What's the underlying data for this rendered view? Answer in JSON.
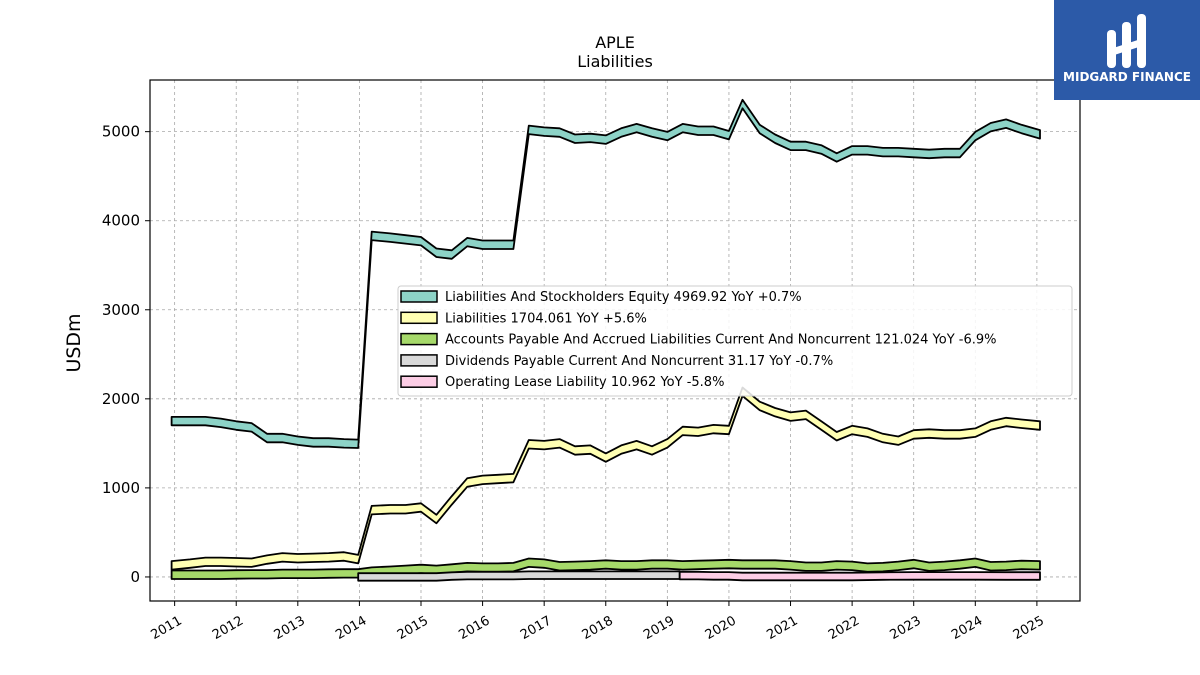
{
  "header": {
    "ticker": "APLE",
    "subtitle": "Liabilities"
  },
  "logo": {
    "text": "MIDGARD FINANCE",
    "background": "#2c5aa8"
  },
  "chart_data": {
    "type": "area",
    "ylabel": "USDm",
    "xlim": [
      2010.6,
      2025.7
    ],
    "ylim": [
      -270,
      5580
    ],
    "yticks": [
      0,
      1000,
      2000,
      3000,
      4000,
      5000
    ],
    "xticks": [
      "2011",
      "2012",
      "2013",
      "2014",
      "2015",
      "2016",
      "2017",
      "2018",
      "2019",
      "2020",
      "2021",
      "2022",
      "2023",
      "2024",
      "2025"
    ],
    "grid": true,
    "legend_position": "center-right",
    "series": [
      {
        "name": "Liabilities And Stockholders Equity",
        "legend": "Liabilities And Stockholders Equity  4969.92 YoY +0.7%",
        "color": "#8dd3c7",
        "band": 95,
        "points": [
          [
            2010.95,
            1750
          ],
          [
            2011.25,
            1750
          ],
          [
            2011.5,
            1750
          ],
          [
            2011.75,
            1730
          ],
          [
            2012.0,
            1700
          ],
          [
            2012.25,
            1680
          ],
          [
            2012.5,
            1560
          ],
          [
            2012.75,
            1560
          ],
          [
            2013.0,
            1530
          ],
          [
            2013.25,
            1510
          ],
          [
            2013.5,
            1510
          ],
          [
            2013.75,
            1500
          ],
          [
            2013.98,
            1495
          ],
          [
            2014.2,
            3830
          ],
          [
            2014.5,
            3810
          ],
          [
            2014.75,
            3790
          ],
          [
            2015.0,
            3770
          ],
          [
            2015.25,
            3640
          ],
          [
            2015.5,
            3620
          ],
          [
            2015.75,
            3760
          ],
          [
            2016.0,
            3730
          ],
          [
            2016.25,
            3730
          ],
          [
            2016.5,
            3730
          ],
          [
            2016.75,
            5020
          ],
          [
            2017.0,
            5000
          ],
          [
            2017.25,
            4990
          ],
          [
            2017.5,
            4920
          ],
          [
            2017.75,
            4930
          ],
          [
            2018.0,
            4910
          ],
          [
            2018.25,
            4990
          ],
          [
            2018.5,
            5040
          ],
          [
            2018.75,
            4990
          ],
          [
            2019.0,
            4950
          ],
          [
            2019.25,
            5040
          ],
          [
            2019.5,
            5010
          ],
          [
            2019.75,
            5010
          ],
          [
            2020.0,
            4960
          ],
          [
            2020.22,
            5310
          ],
          [
            2020.5,
            5030
          ],
          [
            2020.75,
            4920
          ],
          [
            2021.0,
            4840
          ],
          [
            2021.25,
            4840
          ],
          [
            2021.5,
            4800
          ],
          [
            2021.75,
            4710
          ],
          [
            2022.0,
            4790
          ],
          [
            2022.25,
            4790
          ],
          [
            2022.5,
            4770
          ],
          [
            2022.75,
            4770
          ],
          [
            2023.0,
            4760
          ],
          [
            2023.25,
            4750
          ],
          [
            2023.5,
            4760
          ],
          [
            2023.75,
            4760
          ],
          [
            2024.0,
            4950
          ],
          [
            2024.25,
            5050
          ],
          [
            2024.5,
            5090
          ],
          [
            2024.75,
            5030
          ],
          [
            2025.05,
            4970
          ]
        ]
      },
      {
        "name": "Liabilities",
        "legend": "Liabilities  1704.061 YoY +5.6%",
        "color": "#ffffb3",
        "band": 95,
        "points": [
          [
            2010.95,
            130
          ],
          [
            2011.25,
            150
          ],
          [
            2011.5,
            170
          ],
          [
            2011.75,
            170
          ],
          [
            2012.0,
            165
          ],
          [
            2012.25,
            160
          ],
          [
            2012.5,
            195
          ],
          [
            2012.75,
            220
          ],
          [
            2013.0,
            210
          ],
          [
            2013.25,
            215
          ],
          [
            2013.5,
            220
          ],
          [
            2013.75,
            230
          ],
          [
            2013.98,
            200
          ],
          [
            2014.2,
            750
          ],
          [
            2014.5,
            760
          ],
          [
            2014.75,
            760
          ],
          [
            2015.0,
            780
          ],
          [
            2015.25,
            650
          ],
          [
            2015.5,
            860
          ],
          [
            2015.75,
            1060
          ],
          [
            2016.0,
            1090
          ],
          [
            2016.25,
            1100
          ],
          [
            2016.5,
            1110
          ],
          [
            2016.75,
            1490
          ],
          [
            2017.0,
            1480
          ],
          [
            2017.25,
            1500
          ],
          [
            2017.5,
            1420
          ],
          [
            2017.75,
            1430
          ],
          [
            2018.0,
            1340
          ],
          [
            2018.25,
            1430
          ],
          [
            2018.5,
            1480
          ],
          [
            2018.75,
            1420
          ],
          [
            2019.0,
            1500
          ],
          [
            2019.25,
            1640
          ],
          [
            2019.5,
            1630
          ],
          [
            2019.75,
            1660
          ],
          [
            2020.0,
            1650
          ],
          [
            2020.22,
            2080
          ],
          [
            2020.5,
            1920
          ],
          [
            2020.75,
            1850
          ],
          [
            2021.0,
            1800
          ],
          [
            2021.25,
            1820
          ],
          [
            2021.5,
            1700
          ],
          [
            2021.75,
            1580
          ],
          [
            2022.0,
            1650
          ],
          [
            2022.25,
            1620
          ],
          [
            2022.5,
            1560
          ],
          [
            2022.75,
            1530
          ],
          [
            2023.0,
            1600
          ],
          [
            2023.25,
            1610
          ],
          [
            2023.5,
            1600
          ],
          [
            2023.75,
            1600
          ],
          [
            2024.0,
            1620
          ],
          [
            2024.25,
            1700
          ],
          [
            2024.5,
            1740
          ],
          [
            2024.75,
            1720
          ],
          [
            2025.05,
            1700
          ]
        ]
      },
      {
        "name": "Accounts Payable And Accrued Liabilities Current And Noncurrent",
        "legend": "Accounts Payable And Accrued Liabilities Current And Noncurrent  121.024 YoY -6.9%",
        "color": "#a6d96a",
        "band": 95,
        "points": [
          [
            2010.95,
            25
          ],
          [
            2011.25,
            25
          ],
          [
            2011.5,
            25
          ],
          [
            2011.75,
            25
          ],
          [
            2012.0,
            28
          ],
          [
            2012.25,
            30
          ],
          [
            2012.5,
            30
          ],
          [
            2012.75,
            35
          ],
          [
            2013.0,
            35
          ],
          [
            2013.25,
            35
          ],
          [
            2013.5,
            38
          ],
          [
            2013.75,
            40
          ],
          [
            2013.98,
            40
          ],
          [
            2014.2,
            60
          ],
          [
            2014.5,
            70
          ],
          [
            2014.75,
            80
          ],
          [
            2015.0,
            90
          ],
          [
            2015.25,
            80
          ],
          [
            2015.5,
            95
          ],
          [
            2015.75,
            110
          ],
          [
            2016.0,
            105
          ],
          [
            2016.25,
            105
          ],
          [
            2016.5,
            110
          ],
          [
            2016.75,
            160
          ],
          [
            2017.0,
            150
          ],
          [
            2017.25,
            120
          ],
          [
            2017.5,
            125
          ],
          [
            2017.75,
            130
          ],
          [
            2018.0,
            140
          ],
          [
            2018.25,
            130
          ],
          [
            2018.5,
            130
          ],
          [
            2018.75,
            140
          ],
          [
            2019.0,
            140
          ],
          [
            2019.25,
            130
          ],
          [
            2019.5,
            135
          ],
          [
            2019.75,
            140
          ],
          [
            2020.0,
            145
          ],
          [
            2020.22,
            140
          ],
          [
            2020.5,
            140
          ],
          [
            2020.75,
            140
          ],
          [
            2021.0,
            130
          ],
          [
            2021.25,
            115
          ],
          [
            2021.5,
            115
          ],
          [
            2021.75,
            130
          ],
          [
            2022.0,
            125
          ],
          [
            2022.25,
            105
          ],
          [
            2022.5,
            110
          ],
          [
            2022.75,
            125
          ],
          [
            2023.0,
            145
          ],
          [
            2023.25,
            115
          ],
          [
            2023.5,
            125
          ],
          [
            2023.75,
            140
          ],
          [
            2024.0,
            160
          ],
          [
            2024.25,
            120
          ],
          [
            2024.5,
            125
          ],
          [
            2024.75,
            135
          ],
          [
            2025.05,
            130
          ]
        ]
      },
      {
        "name": "Dividends Payable Current And Noncurrent",
        "legend": "Dividends Payable Current And Noncurrent  31.17 YoY -0.7%",
        "color": "#d9d9d9",
        "band": 85,
        "points": [
          [
            2013.98,
            0
          ],
          [
            2014.25,
            0
          ],
          [
            2014.5,
            0
          ],
          [
            2014.75,
            0
          ],
          [
            2015.0,
            0
          ],
          [
            2015.25,
            0
          ],
          [
            2015.5,
            10
          ],
          [
            2015.75,
            15
          ],
          [
            2016.0,
            15
          ],
          [
            2016.25,
            15
          ],
          [
            2016.5,
            15
          ],
          [
            2016.75,
            20
          ],
          [
            2017.0,
            20
          ],
          [
            2017.25,
            20
          ],
          [
            2017.5,
            20
          ],
          [
            2017.75,
            20
          ],
          [
            2018.0,
            20
          ],
          [
            2018.25,
            20
          ],
          [
            2018.5,
            20
          ],
          [
            2018.75,
            20
          ],
          [
            2019.0,
            20
          ],
          [
            2019.2,
            20
          ]
        ]
      },
      {
        "name": "Operating Lease Liability",
        "legend": "Operating Lease Liability  10.962 YoY -5.8%",
        "color": "#fccde5",
        "band": 85,
        "points": [
          [
            2019.2,
            15
          ],
          [
            2019.5,
            15
          ],
          [
            2019.75,
            12
          ],
          [
            2020.0,
            12
          ],
          [
            2020.22,
            5
          ],
          [
            2020.5,
            5
          ],
          [
            2021.0,
            5
          ],
          [
            2021.5,
            5
          ],
          [
            2022.0,
            5
          ],
          [
            2022.5,
            10
          ],
          [
            2023.0,
            12
          ],
          [
            2023.5,
            12
          ],
          [
            2024.0,
            12
          ],
          [
            2024.5,
            11
          ],
          [
            2025.05,
            11
          ]
        ]
      }
    ]
  }
}
